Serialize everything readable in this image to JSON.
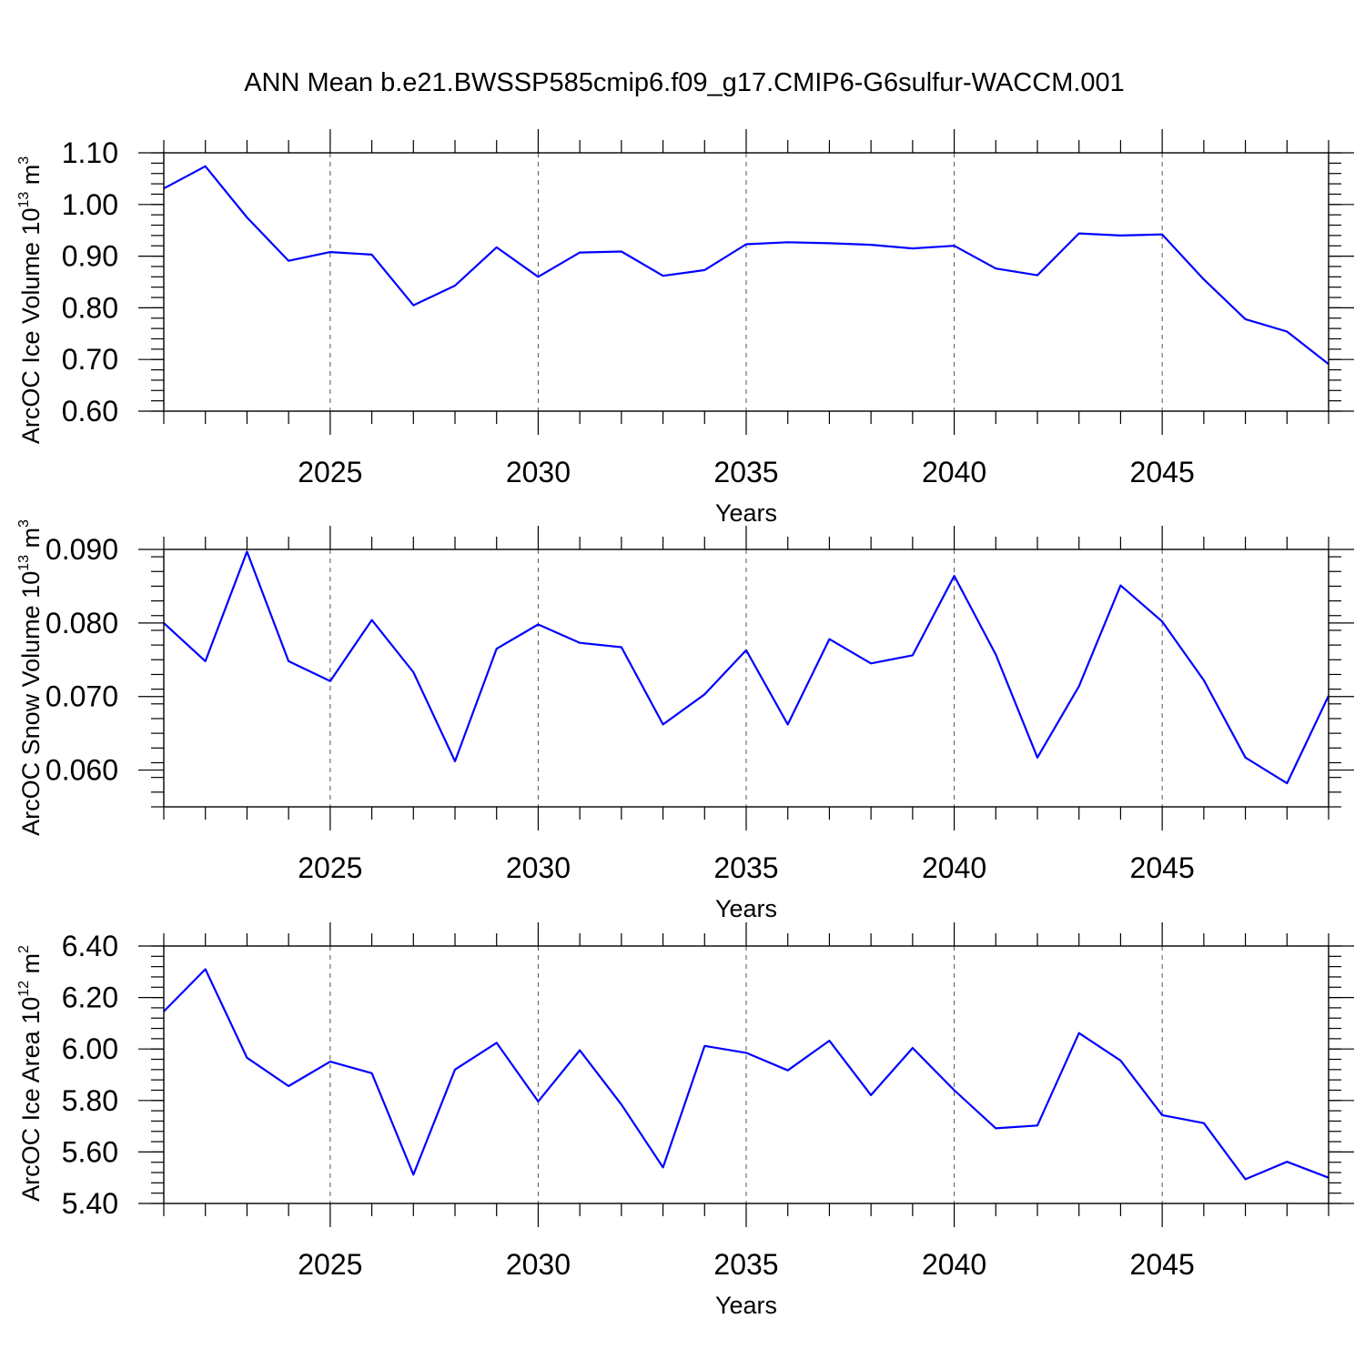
{
  "title": "ANN Mean b.e21.BWSSP585cmip6.f09_g17.CMIP6-G6sulfur-WACCM.001",
  "line_color": "#0000ff",
  "chart_data": [
    {
      "type": "line",
      "ylabel": "ArcOC Ice Volume 10",
      "ylabel_exp": "13",
      "ylabel_unit": "m",
      "ylabel_unit_exp": "3",
      "xlabel": "Years",
      "xlim": [
        2021,
        2049
      ],
      "ylim": [
        0.6,
        1.1
      ],
      "xticks": [
        2025,
        2030,
        2035,
        2040,
        2045
      ],
      "xtick_labels": [
        "2025",
        "2030",
        "2035",
        "2040",
        "2045"
      ],
      "yticks": [
        0.6,
        0.7,
        0.8,
        0.9,
        1.0,
        1.1
      ],
      "ytick_labels": [
        "0.60",
        "0.70",
        "0.80",
        "0.90",
        "1.00",
        "1.10"
      ],
      "y_minor_step": 0.02,
      "grid": "vertical dashed at major x ticks",
      "x": [
        2021,
        2022,
        2023,
        2024,
        2025,
        2026,
        2027,
        2028,
        2029,
        2030,
        2031,
        2032,
        2033,
        2034,
        2035,
        2036,
        2037,
        2038,
        2039,
        2040,
        2041,
        2042,
        2043,
        2044,
        2045,
        2046,
        2047,
        2048,
        2049
      ],
      "values": [
        1.031,
        1.074,
        0.975,
        0.891,
        0.908,
        0.903,
        0.805,
        0.843,
        0.917,
        0.86,
        0.907,
        0.909,
        0.862,
        0.873,
        0.923,
        0.927,
        0.925,
        0.922,
        0.915,
        0.92,
        0.876,
        0.863,
        0.944,
        0.94,
        0.942,
        0.855,
        0.778,
        0.754,
        0.691
      ]
    },
    {
      "type": "line",
      "ylabel": "ArcOC Snow Volume 10",
      "ylabel_exp": "13",
      "ylabel_unit": "m",
      "ylabel_unit_exp": "3",
      "xlabel": "Years",
      "xlim": [
        2021,
        2049
      ],
      "ylim": [
        0.055,
        0.09
      ],
      "xticks": [
        2025,
        2030,
        2035,
        2040,
        2045
      ],
      "xtick_labels": [
        "2025",
        "2030",
        "2035",
        "2040",
        "2045"
      ],
      "yticks": [
        0.06,
        0.07,
        0.08,
        0.09
      ],
      "ytick_labels": [
        "0.060",
        "0.070",
        "0.080",
        "0.090"
      ],
      "y_minor_step": 0.002,
      "grid": "vertical dashed at major x ticks",
      "x": [
        2021,
        2022,
        2023,
        2024,
        2025,
        2026,
        2027,
        2028,
        2029,
        2030,
        2031,
        2032,
        2033,
        2034,
        2035,
        2036,
        2037,
        2038,
        2039,
        2040,
        2041,
        2042,
        2043,
        2044,
        2045,
        2046,
        2047,
        2048,
        2049
      ],
      "values": [
        0.08,
        0.0748,
        0.0897,
        0.0748,
        0.0721,
        0.0804,
        0.0733,
        0.0612,
        0.0765,
        0.0798,
        0.0773,
        0.0767,
        0.0662,
        0.0703,
        0.0763,
        0.0662,
        0.0778,
        0.0745,
        0.0756,
        0.0864,
        0.0757,
        0.0617,
        0.0714,
        0.0851,
        0.0802,
        0.0722,
        0.0617,
        0.0582,
        0.0701
      ]
    },
    {
      "type": "line",
      "ylabel": "ArcOC Ice Area 10",
      "ylabel_exp": "12",
      "ylabel_unit": "m",
      "ylabel_unit_exp": "2",
      "xlabel": "Years",
      "xlim": [
        2021,
        2049
      ],
      "ylim": [
        5.4,
        6.4
      ],
      "xticks": [
        2025,
        2030,
        2035,
        2040,
        2045
      ],
      "xtick_labels": [
        "2025",
        "2030",
        "2035",
        "2040",
        "2045"
      ],
      "yticks": [
        5.4,
        5.6,
        5.8,
        6.0,
        6.2,
        6.4
      ],
      "ytick_labels": [
        "5.40",
        "5.60",
        "5.80",
        "6.00",
        "6.20",
        "6.40"
      ],
      "y_minor_step": 0.04,
      "grid": "vertical dashed at major x ticks",
      "x": [
        2021,
        2022,
        2023,
        2024,
        2025,
        2026,
        2027,
        2028,
        2029,
        2030,
        2031,
        2032,
        2033,
        2034,
        2035,
        2036,
        2037,
        2038,
        2039,
        2040,
        2041,
        2042,
        2043,
        2044,
        2045,
        2046,
        2047,
        2048,
        2049
      ],
      "values": [
        6.146,
        6.31,
        5.966,
        5.856,
        5.951,
        5.906,
        5.512,
        5.92,
        6.024,
        5.796,
        5.995,
        5.784,
        5.54,
        6.012,
        5.985,
        5.917,
        6.032,
        5.821,
        6.004,
        5.84,
        5.692,
        5.703,
        6.062,
        5.955,
        5.743,
        5.712,
        5.494,
        5.562,
        5.5
      ]
    }
  ]
}
